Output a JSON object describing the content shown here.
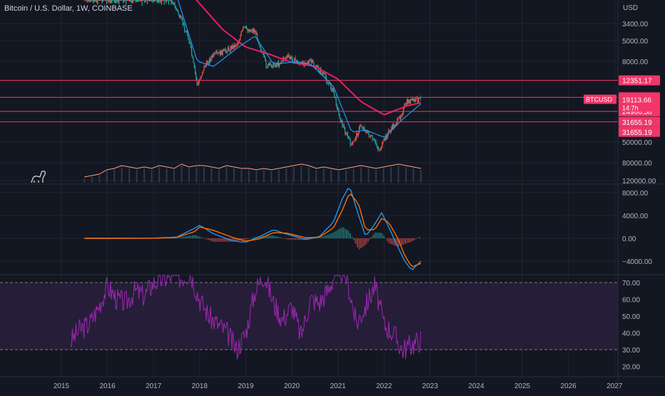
{
  "header": {
    "title": "Bitcoin / U.S. Dollar, 1W, COINBASE",
    "currency": "USD"
  },
  "colors": {
    "background": "#131722",
    "grid": "#1f2430",
    "text": "#b2b5be",
    "hline": "#f23669",
    "hline_label_bg": "#f23669",
    "candle_up": "#26a69a",
    "candle_down": "#ef5350",
    "ma_long": "#e91e63",
    "ma_short": "#2196f3",
    "volume_ma": "#ff9e80",
    "macd": "#2196f3",
    "macd_signal": "#ff6d00",
    "rsi": "#9c27b0",
    "rsi_band": "#2a1f3d"
  },
  "logo": {
    "name": "dino-logo-icon"
  },
  "chart_data": [
    {
      "type": "candlestick",
      "panel": "price",
      "scale": "inverted-log",
      "yticks": [
        "3400.00",
        "5000.00",
        "8000.00",
        "50000.00",
        "80000.00",
        "120000.00"
      ],
      "ytick_values": [
        3400,
        5000,
        8000,
        50000,
        80000,
        120000
      ],
      "horizontal_levels": [
        {
          "value": 12351.17,
          "label": "12351.17"
        },
        {
          "value": 18137.55,
          "label": "18137.55"
        },
        {
          "value": 24966.58,
          "label": "24966.58"
        },
        {
          "value": 31655.19,
          "label": "31655.19"
        }
      ],
      "extra_price_labels": [
        "31655.19"
      ],
      "current_price": {
        "symbol": "BTCUSD",
        "value": 19113.66,
        "label": "19113.66",
        "countdown": "14:7h"
      },
      "close_series": {
        "dates": [
          2015.5,
          2016.0,
          2016.5,
          2017.0,
          2017.4,
          2017.75,
          2017.95,
          2018.1,
          2018.3,
          2018.5,
          2018.8,
          2018.95,
          2019.2,
          2019.45,
          2019.7,
          2019.9,
          2020.2,
          2020.4,
          2020.7,
          2020.9,
          2021.05,
          2021.3,
          2021.5,
          2021.75,
          2021.9,
          2022.1,
          2022.3,
          2022.5,
          2022.7,
          2022.8
        ],
        "values": [
          270,
          400,
          650,
          1000,
          2000,
          4500,
          14000,
          9000,
          7000,
          6500,
          5500,
          3800,
          4000,
          9000,
          8500,
          7200,
          8500,
          8000,
          11000,
          16000,
          30000,
          55000,
          34000,
          47000,
          60000,
          40000,
          31000,
          20000,
          19500,
          19100
        ]
      },
      "ma_long": {
        "dates": [
          2015.5,
          2016.5,
          2017.5,
          2018.5,
          2019.0,
          2019.5,
          2020.0,
          2020.5,
          2021.0,
          2021.5,
          2022.0,
          2022.5,
          2022.8
        ],
        "values": [
          300,
          480,
          1200,
          3900,
          5800,
          6800,
          8200,
          9000,
          12000,
          20000,
          27000,
          22000,
          20500
        ]
      },
      "ma_short": {
        "dates": [
          2015.5,
          2016.5,
          2017.5,
          2017.95,
          2018.3,
          2018.8,
          2019.2,
          2019.6,
          2020.0,
          2020.4,
          2020.9,
          2021.3,
          2021.6,
          2022.0,
          2022.4,
          2022.8
        ],
        "values": [
          260,
          480,
          1800,
          8000,
          9000,
          6000,
          4500,
          8500,
          8200,
          8500,
          14000,
          40000,
          38000,
          45000,
          30000,
          21000
        ]
      }
    },
    {
      "type": "line",
      "panel": "volume",
      "series": [
        {
          "values": [
            0.2,
            0.25,
            0.3,
            0.45,
            0.5,
            0.6,
            0.55,
            0.5,
            0.55,
            0.5,
            0.6,
            0.55,
            0.5,
            0.65,
            0.55,
            0.6,
            0.6,
            0.55,
            0.5,
            0.6,
            0.55,
            0.5,
            0.5,
            0.45,
            0.5,
            0.45,
            0.5,
            0.55,
            0.6,
            0.65,
            0.6,
            0.5,
            0.55,
            0.5,
            0.45,
            0.5,
            0.55,
            0.6,
            0.55,
            0.5,
            0.55,
            0.6,
            0.65,
            0.6,
            0.55,
            0.5
          ]
        }
      ]
    },
    {
      "type": "line",
      "panel": "macd",
      "yticks": [
        "8000.00",
        "4000.00",
        "0.00",
        "−4000.00"
      ],
      "ytick_values": [
        8000,
        4000,
        0,
        -4000
      ],
      "dates": [
        2015.5,
        2016.5,
        2017.0,
        2017.5,
        2017.9,
        2018.0,
        2018.3,
        2018.7,
        2019.0,
        2019.3,
        2019.6,
        2019.9,
        2020.3,
        2020.6,
        2020.9,
        2021.1,
        2021.25,
        2021.45,
        2021.6,
        2021.8,
        2021.95,
        2022.1,
        2022.3,
        2022.45,
        2022.6,
        2022.8
      ],
      "series": [
        {
          "name": "MACD",
          "values": [
            0,
            10,
            30,
            200,
            1800,
            2300,
            800,
            -400,
            -700,
            300,
            1500,
            700,
            -200,
            300,
            2800,
            7000,
            9200,
            4000,
            300,
            2500,
            4500,
            2000,
            -1500,
            -4000,
            -5600,
            -4000
          ]
        },
        {
          "name": "Signal",
          "values": [
            0,
            5,
            20,
            150,
            1200,
            2000,
            1400,
            200,
            -500,
            -100,
            1000,
            900,
            100,
            200,
            1800,
            5000,
            8000,
            6000,
            1500,
            1500,
            3500,
            2800,
            0,
            -3000,
            -5000,
            -4400
          ]
        }
      ]
    },
    {
      "type": "line",
      "panel": "rsi",
      "yticks": [
        "70.00",
        "60.00",
        "50.00",
        "40.00",
        "30.00",
        "20.00"
      ],
      "ytick_values": [
        70,
        60,
        50,
        40,
        30,
        20
      ],
      "band": [
        30,
        70
      ],
      "dates": [
        2015.2,
        2015.4,
        2015.6,
        2015.8,
        2016.0,
        2016.2,
        2016.4,
        2016.6,
        2016.8,
        2017.0,
        2017.2,
        2017.4,
        2017.6,
        2017.8,
        2018.0,
        2018.2,
        2018.4,
        2018.6,
        2018.8,
        2019.0,
        2019.2,
        2019.4,
        2019.6,
        2019.8,
        2020.0,
        2020.2,
        2020.4,
        2020.6,
        2020.8,
        2021.0,
        2021.2,
        2021.4,
        2021.6,
        2021.8,
        2022.0,
        2022.2,
        2022.4,
        2022.6,
        2022.8
      ],
      "values": [
        35,
        42,
        45,
        55,
        68,
        60,
        58,
        65,
        62,
        70,
        72,
        74,
        73,
        76,
        60,
        50,
        45,
        40,
        30,
        40,
        65,
        75,
        58,
        48,
        56,
        38,
        60,
        58,
        66,
        80,
        72,
        45,
        56,
        68,
        45,
        40,
        30,
        33,
        36
      ]
    }
  ],
  "time_axis": {
    "labels": [
      "2015",
      "2016",
      "2017",
      "2018",
      "2019",
      "2020",
      "2021",
      "2022",
      "2023",
      "2024",
      "2025",
      "2026",
      "2027"
    ],
    "years": [
      2015,
      2016,
      2017,
      2018,
      2019,
      2020,
      2021,
      2022,
      2023,
      2024,
      2025,
      2026,
      2027
    ]
  }
}
